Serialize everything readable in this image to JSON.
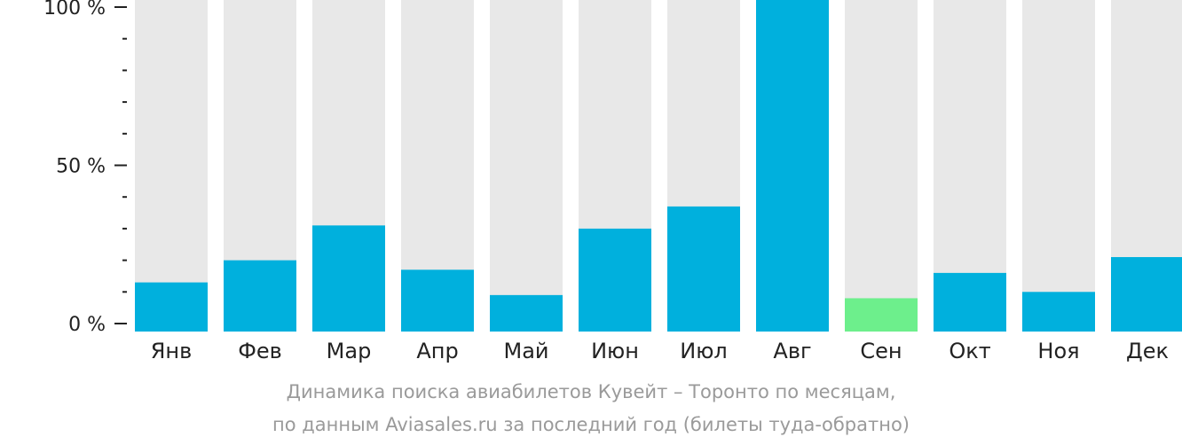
{
  "chart_data": {
    "type": "bar",
    "categories": [
      "Янв",
      "Фев",
      "Мар",
      "Апр",
      "Май",
      "Июн",
      "Июл",
      "Авг",
      "Сен",
      "Окт",
      "Ноя",
      "Дек"
    ],
    "values": [
      13,
      20,
      31,
      17,
      9,
      30,
      37,
      100,
      8,
      16,
      10,
      21
    ],
    "ylim": [
      0,
      100
    ],
    "yticks": [
      "0 %",
      "50 %",
      "100 %"
    ],
    "grid": false,
    "legend": "none",
    "highlight_index": 8,
    "colors": {
      "bar": "#00b0dd",
      "highlight": "#6def8c",
      "background_bar": "#e8e8e8",
      "axis": "#222222",
      "caption": "#9a9a9a"
    }
  },
  "caption": {
    "line1": "Динамика поиска авиабилетов Кувейт – Торонто по месяцам,",
    "line2": "по данным Aviasales.ru за последний год (билеты туда-обратно)"
  }
}
